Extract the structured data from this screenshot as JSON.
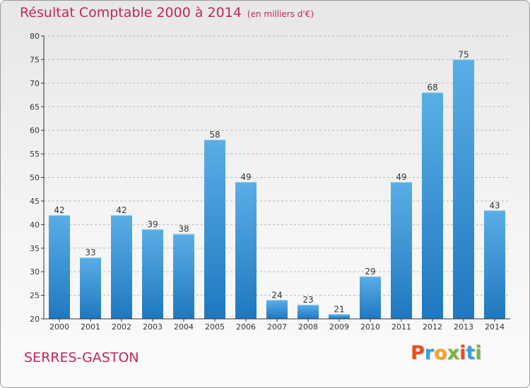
{
  "header": {
    "title": "Résultat Comptable 2000 à 2014",
    "subtitle": "(en milliers d'€)"
  },
  "footer": {
    "commune": "SERRES-GASTON",
    "logo": "Proxiti",
    "logo_colors": [
      "#e94e1b",
      "#3b9fd8",
      "#f5a623",
      "#7cb342",
      "#e94e1b",
      "#3b9fd8",
      "#7cb342"
    ]
  },
  "colors": {
    "bar_light": "#5aaee6",
    "bar_dark": "#1f78bf",
    "axis": "#333333",
    "grid": "#bbbbbb"
  },
  "chart_data": {
    "type": "bar",
    "title": "Résultat Comptable 2000 à 2014",
    "subtitle": "(en milliers d'€)",
    "categories": [
      "2000",
      "2001",
      "2002",
      "2003",
      "2004",
      "2005",
      "2006",
      "2007",
      "2008",
      "2009",
      "2010",
      "2011",
      "2012",
      "2013",
      "2014"
    ],
    "values": [
      42,
      33,
      42,
      39,
      38,
      58,
      49,
      24,
      23,
      21,
      29,
      49,
      68,
      75,
      43
    ],
    "data_labels": [
      "42",
      "33",
      "42",
      "39",
      "38",
      "58",
      "49",
      "24",
      "23",
      "21",
      "29",
      "49",
      "68",
      "75",
      "43"
    ],
    "ylim": [
      20,
      80
    ],
    "yticks": [
      20,
      25,
      30,
      35,
      40,
      45,
      50,
      55,
      60,
      65,
      70,
      75,
      80
    ],
    "grid": true,
    "legend": "none"
  }
}
